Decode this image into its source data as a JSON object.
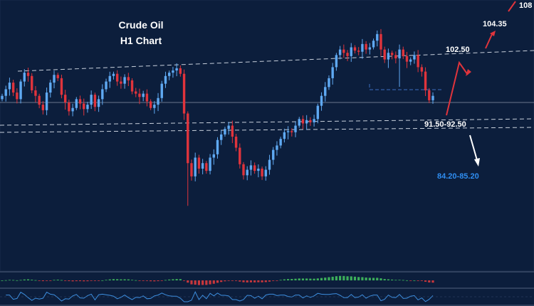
{
  "chart_data": {
    "type": "candlestick",
    "title": "Crude Oil",
    "subtitle": "H1 Chart",
    "colors": {
      "background": "#0c1e3c",
      "up": "#5fa9f2",
      "down": "#e0343c",
      "support_line": "#c8d0dc",
      "label": "#ffffff",
      "target_label": "#2f8df0",
      "arrow_up": "#e0343c",
      "arrow_down": "#ffffff",
      "hist_pos": "#3cae5a",
      "hist_neg": "#c8373c",
      "oscillator": "#3d8fe0"
    },
    "levels": [
      {
        "name": "resistance-1",
        "label": "102.50"
      },
      {
        "name": "resistance-2",
        "label": "104.35"
      },
      {
        "name": "resistance-3",
        "label": "108"
      },
      {
        "name": "support",
        "label": "91.50-92.50"
      },
      {
        "name": "target",
        "label": "84.20-85.20"
      }
    ],
    "closes": [
      97.6,
      98.2,
      98.8,
      97.9,
      97.3,
      98.9,
      99.7,
      99.4,
      98.1,
      97.6,
      96.8,
      96.3,
      97.9,
      98.8,
      99.5,
      99.2,
      97.7,
      97.0,
      96.2,
      96.5,
      97.3,
      96.9,
      96.4,
      96.8,
      97.7,
      96.6,
      97.3,
      98.2,
      98.9,
      99.4,
      99.6,
      98.9,
      98.7,
      99.3,
      99.0,
      98.0,
      97.8,
      97.5,
      97.8,
      97.1,
      96.5,
      96.8,
      97.4,
      98.7,
      99.4,
      99.7,
      99.9,
      100.1,
      99.6,
      96.0,
      91.5,
      90.3,
      92.0,
      91.0,
      91.5,
      90.8,
      92.0,
      92.3,
      93.6,
      94.1,
      94.6,
      94.9,
      93.9,
      92.9,
      91.4,
      90.4,
      90.9,
      91.3,
      90.8,
      91.0,
      90.3,
      90.9,
      91.8,
      92.7,
      93.1,
      93.7,
      94.3,
      94.4,
      94.3,
      94.9,
      95.5,
      95.1,
      95.4,
      95.2,
      95.5,
      96.7,
      97.6,
      98.4,
      99.2,
      100.2,
      101.3,
      101.8,
      101.5,
      101.2,
      102.0,
      101.7,
      101.6,
      102.3,
      101.8,
      102.0,
      102.6,
      103.2,
      101.8,
      100.9,
      101.5,
      101.3,
      101.0,
      101.8,
      101.2,
      100.7,
      100.9,
      101.3,
      100.2,
      99.8,
      98.1,
      97.2,
      97.6
    ]
  }
}
